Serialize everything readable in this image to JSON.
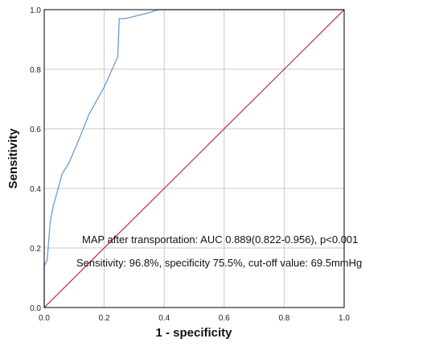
{
  "chart_data": {
    "type": "line",
    "xlabel": "1 - specificity",
    "ylabel": "Sensitivity",
    "xlim": [
      0,
      1
    ],
    "ylim": [
      0,
      1
    ],
    "grid": true,
    "x_ticks": [
      "0.0",
      "0.2",
      "0.4",
      "0.6",
      "0.8",
      "1.0"
    ],
    "y_ticks": [
      "0.0",
      "0.2",
      "0.4",
      "0.6",
      "0.8",
      "1.0"
    ],
    "series": [
      {
        "color": "#6a9bd8",
        "points": [
          [
            0.0,
            0.0
          ],
          [
            0.0,
            0.14
          ],
          [
            0.01,
            0.16
          ],
          [
            0.02,
            0.29
          ],
          [
            0.03,
            0.34
          ],
          [
            0.06,
            0.45
          ],
          [
            0.08,
            0.48
          ],
          [
            0.11,
            0.55
          ],
          [
            0.15,
            0.65
          ],
          [
            0.2,
            0.74
          ],
          [
            0.24,
            0.83
          ],
          [
            0.245,
            0.84
          ],
          [
            0.25,
            0.97
          ],
          [
            0.27,
            0.97
          ],
          [
            0.35,
            0.99
          ],
          [
            0.38,
            1.0
          ],
          [
            1.0,
            1.0
          ]
        ]
      },
      {
        "color": "#c8385a",
        "points": [
          [
            0.0,
            0.0
          ],
          [
            1.0,
            1.0
          ]
        ]
      }
    ],
    "annotations": [
      "MAP after transportation: AUC 0.889(0.822-0.956), p<0.001",
      "Sensitivity: 96.8%, specificity 75.5%, cut-off value: 69.5mmHg"
    ]
  }
}
